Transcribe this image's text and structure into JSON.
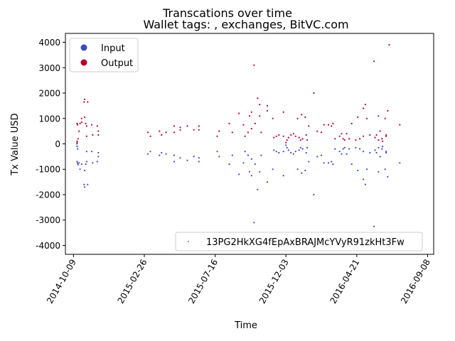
{
  "chart_data": {
    "type": "scatter",
    "title": "Transcations over time",
    "subtitle": "Wallet tags: , exchanges, BitVC.com",
    "xlabel": "Time",
    "ylabel": "Tx Value USD",
    "xlim": [
      "2014-09-23",
      "2016-09-20"
    ],
    "ylim": [
      -4350,
      4350
    ],
    "yticks": [
      -4000,
      -3000,
      -2000,
      -1000,
      0,
      1000,
      2000,
      3000,
      4000
    ],
    "xticks": [
      "2014-10-09",
      "2015-02-26",
      "2015-07-16",
      "2015-12-03",
      "2016-04-21",
      "2016-09-08"
    ],
    "colors": {
      "input": "#3b4cc0",
      "output": "#b40426"
    },
    "legend_top": {
      "placement": "top-left",
      "entries": [
        "Input",
        "Output"
      ]
    },
    "legend_bottom": {
      "placement": "bottom-right",
      "entries": [
        "13PG2HkXG4fEpAxBRAJMcYVyR91zkHt3Fw"
      ]
    },
    "series": [
      {
        "name": "Input",
        "points": [
          [
            "2014-10-16",
            -700
          ],
          [
            "2014-10-17",
            -760
          ],
          [
            "2014-10-18",
            -820
          ],
          [
            "2014-10-20",
            -750
          ],
          [
            "2014-10-22",
            -1000
          ],
          [
            "2014-10-25",
            -800
          ],
          [
            "2014-10-30",
            -1600
          ],
          [
            "2014-10-31",
            -1700
          ],
          [
            "2014-10-31",
            -1050
          ],
          [
            "2014-11-02",
            -800
          ],
          [
            "2014-11-04",
            -300
          ],
          [
            "2014-11-04",
            -700
          ],
          [
            "2014-11-06",
            -1600
          ],
          [
            "2014-11-14",
            -300
          ],
          [
            "2014-11-16",
            -750
          ],
          [
            "2014-11-25",
            -700
          ],
          [
            "2014-11-27",
            -350
          ],
          [
            "2014-11-27",
            -500
          ],
          [
            "2014-10-16",
            0
          ],
          [
            "2014-10-16",
            -100
          ],
          [
            "2014-10-17",
            -200
          ],
          [
            "2015-03-05",
            -400
          ],
          [
            "2015-03-10",
            -300
          ],
          [
            "2015-03-28",
            -450
          ],
          [
            "2015-04-01",
            -350
          ],
          [
            "2015-04-10",
            -400
          ],
          [
            "2015-04-26",
            -700
          ],
          [
            "2015-04-26",
            -450
          ],
          [
            "2015-05-08",
            -550
          ],
          [
            "2015-05-22",
            -650
          ],
          [
            "2015-06-04",
            -500
          ],
          [
            "2015-06-14",
            -700
          ],
          [
            "2015-06-14",
            -550
          ],
          [
            "2015-07-20",
            -300
          ],
          [
            "2015-07-24",
            -500
          ],
          [
            "2015-08-13",
            -800
          ],
          [
            "2015-08-19",
            -450
          ],
          [
            "2015-09-01",
            -1200
          ],
          [
            "2015-09-10",
            -750
          ],
          [
            "2015-09-13",
            -300
          ],
          [
            "2015-09-19",
            -450
          ],
          [
            "2015-09-22",
            -1100
          ],
          [
            "2015-09-26",
            -1250
          ],
          [
            "2015-09-26",
            -600
          ],
          [
            "2015-10-01",
            -3100
          ],
          [
            "2015-10-03",
            -800
          ],
          [
            "2015-10-08",
            -1800
          ],
          [
            "2015-10-12",
            -1100
          ],
          [
            "2015-10-15",
            -450
          ],
          [
            "2015-10-27",
            -1500
          ],
          [
            "2015-11-07",
            -1000
          ],
          [
            "2015-11-09",
            -250
          ],
          [
            "2015-11-14",
            -300
          ],
          [
            "2015-11-19",
            -350
          ],
          [
            "2015-11-28",
            -1250
          ],
          [
            "2015-11-28",
            -300
          ],
          [
            "2015-12-03",
            -50
          ],
          [
            "2015-12-05",
            -150
          ],
          [
            "2015-12-08",
            -250
          ],
          [
            "2015-12-13",
            -350
          ],
          [
            "2015-12-18",
            -400
          ],
          [
            "2015-12-22",
            -300
          ],
          [
            "2015-12-26",
            -1000
          ],
          [
            "2015-12-29",
            -250
          ],
          [
            "2016-01-01",
            -150
          ],
          [
            "2016-01-03",
            -1150
          ],
          [
            "2016-01-05",
            -200
          ],
          [
            "2016-01-10",
            -1050
          ],
          [
            "2016-01-12",
            -350
          ],
          [
            "2016-01-14",
            -150
          ],
          [
            "2016-01-17",
            -700
          ],
          [
            "2016-01-27",
            -2000
          ],
          [
            "2016-02-03",
            -500
          ],
          [
            "2016-02-11",
            -450
          ],
          [
            "2016-02-16",
            -750
          ],
          [
            "2016-02-25",
            -750
          ],
          [
            "2016-03-02",
            -700
          ],
          [
            "2016-03-05",
            -800
          ],
          [
            "2016-03-09",
            -200
          ],
          [
            "2016-03-18",
            -300
          ],
          [
            "2016-03-22",
            -400
          ],
          [
            "2016-03-25",
            -200
          ],
          [
            "2016-03-28",
            -150
          ],
          [
            "2016-04-01",
            -400
          ],
          [
            "2016-04-06",
            -200
          ],
          [
            "2016-04-11",
            -800
          ],
          [
            "2016-04-19",
            -150
          ],
          [
            "2016-04-23",
            -1050
          ],
          [
            "2016-04-27",
            -200
          ],
          [
            "2016-05-04",
            -300
          ],
          [
            "2016-05-04",
            -1400
          ],
          [
            "2016-05-08",
            -1600
          ],
          [
            "2016-05-11",
            -1000
          ],
          [
            "2016-05-17",
            -350
          ],
          [
            "2016-05-25",
            -3250
          ],
          [
            "2016-05-27",
            -250
          ],
          [
            "2016-05-30",
            -350
          ],
          [
            "2016-06-03",
            -1100
          ],
          [
            "2016-06-03",
            -150
          ],
          [
            "2016-06-06",
            -500
          ],
          [
            "2016-06-10",
            -200
          ],
          [
            "2016-06-11",
            -100
          ],
          [
            "2016-06-16",
            -1000
          ],
          [
            "2016-06-18",
            -300
          ],
          [
            "2016-06-18",
            -350
          ],
          [
            "2016-06-21",
            -1300
          ],
          [
            "2016-07-15",
            -750
          ]
        ]
      },
      {
        "name": "Output",
        "points": [
          [
            "2014-10-16",
            800
          ],
          [
            "2014-10-17",
            750
          ],
          [
            "2014-10-18",
            200
          ],
          [
            "2014-10-20",
            500
          ],
          [
            "2014-10-22",
            800
          ],
          [
            "2014-10-25",
            850
          ],
          [
            "2014-10-25",
            1000
          ],
          [
            "2014-10-30",
            1650
          ],
          [
            "2014-10-31",
            1750
          ],
          [
            "2014-10-31",
            1050
          ],
          [
            "2014-11-02",
            800
          ],
          [
            "2014-11-04",
            700
          ],
          [
            "2014-11-04",
            300
          ],
          [
            "2014-11-06",
            1650
          ],
          [
            "2014-11-14",
            750
          ],
          [
            "2014-11-16",
            350
          ],
          [
            "2014-11-25",
            700
          ],
          [
            "2014-11-27",
            350
          ],
          [
            "2014-11-27",
            500
          ],
          [
            "2014-10-16",
            50
          ],
          [
            "2014-10-16",
            100
          ],
          [
            "2015-03-05",
            450
          ],
          [
            "2015-03-10",
            300
          ],
          [
            "2015-03-28",
            500
          ],
          [
            "2015-04-01",
            350
          ],
          [
            "2015-04-10",
            450
          ],
          [
            "2015-04-26",
            700
          ],
          [
            "2015-04-26",
            450
          ],
          [
            "2015-05-08",
            650
          ],
          [
            "2015-05-08",
            550
          ],
          [
            "2015-05-22",
            700
          ],
          [
            "2015-06-04",
            550
          ],
          [
            "2015-06-14",
            700
          ],
          [
            "2015-06-14",
            550
          ],
          [
            "2015-07-20",
            300
          ],
          [
            "2015-07-24",
            500
          ],
          [
            "2015-08-13",
            800
          ],
          [
            "2015-08-19",
            450
          ],
          [
            "2015-09-01",
            1200
          ],
          [
            "2015-09-10",
            750
          ],
          [
            "2015-09-13",
            300
          ],
          [
            "2015-09-19",
            450
          ],
          [
            "2015-09-22",
            1100
          ],
          [
            "2015-09-26",
            1250
          ],
          [
            "2015-09-26",
            600
          ],
          [
            "2015-10-01",
            3100
          ],
          [
            "2015-10-03",
            800
          ],
          [
            "2015-10-08",
            1800
          ],
          [
            "2015-10-12",
            1100
          ],
          [
            "2015-10-12",
            1550
          ],
          [
            "2015-10-15",
            450
          ],
          [
            "2015-10-27",
            1500
          ],
          [
            "2015-10-27",
            1300
          ],
          [
            "2015-11-07",
            1000
          ],
          [
            "2015-11-09",
            250
          ],
          [
            "2015-11-14",
            300
          ],
          [
            "2015-11-19",
            350
          ],
          [
            "2015-11-28",
            1250
          ],
          [
            "2015-11-28",
            300
          ],
          [
            "2015-12-03",
            50
          ],
          [
            "2015-12-05",
            150
          ],
          [
            "2015-12-08",
            250
          ],
          [
            "2015-12-13",
            350
          ],
          [
            "2015-12-18",
            400
          ],
          [
            "2015-12-22",
            300
          ],
          [
            "2015-12-26",
            1000
          ],
          [
            "2015-12-29",
            250
          ],
          [
            "2016-01-01",
            150
          ],
          [
            "2016-01-03",
            1150
          ],
          [
            "2016-01-05",
            200
          ],
          [
            "2016-01-10",
            1050
          ],
          [
            "2016-01-12",
            350
          ],
          [
            "2016-01-14",
            150
          ],
          [
            "2016-01-17",
            700
          ],
          [
            "2016-01-27",
            2000
          ],
          [
            "2016-02-03",
            500
          ],
          [
            "2016-02-11",
            450
          ],
          [
            "2016-02-16",
            750
          ],
          [
            "2016-02-25",
            750
          ],
          [
            "2016-03-02",
            700
          ],
          [
            "2016-03-05",
            800
          ],
          [
            "2016-03-09",
            200
          ],
          [
            "2016-03-18",
            300
          ],
          [
            "2016-03-22",
            400
          ],
          [
            "2016-03-25",
            200
          ],
          [
            "2016-03-28",
            150
          ],
          [
            "2016-04-01",
            400
          ],
          [
            "2016-04-06",
            200
          ],
          [
            "2016-04-11",
            800
          ],
          [
            "2016-04-19",
            150
          ],
          [
            "2016-04-23",
            1050
          ],
          [
            "2016-04-27",
            200
          ],
          [
            "2016-05-04",
            300
          ],
          [
            "2016-05-04",
            1400
          ],
          [
            "2016-05-08",
            1550
          ],
          [
            "2016-05-11",
            1000
          ],
          [
            "2016-05-17",
            350
          ],
          [
            "2016-05-25",
            3250
          ],
          [
            "2016-05-27",
            250
          ],
          [
            "2016-05-30",
            350
          ],
          [
            "2016-06-03",
            1100
          ],
          [
            "2016-06-03",
            150
          ],
          [
            "2016-06-06",
            500
          ],
          [
            "2016-06-10",
            200
          ],
          [
            "2016-06-11",
            100
          ],
          [
            "2016-06-16",
            1000
          ],
          [
            "2016-06-18",
            300
          ],
          [
            "2016-06-18",
            350
          ],
          [
            "2016-06-21",
            1300
          ],
          [
            "2016-06-24",
            3900
          ],
          [
            "2016-07-15",
            750
          ]
        ]
      }
    ]
  }
}
